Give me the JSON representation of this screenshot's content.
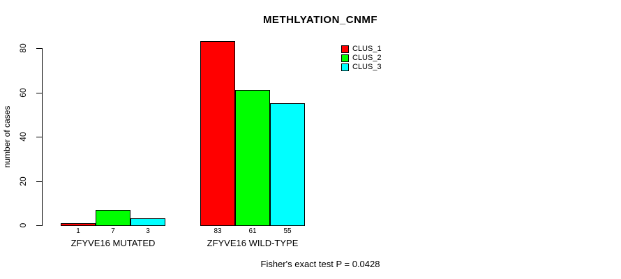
{
  "title": "METHLYATION_CNMF",
  "y_axis": {
    "label": "number of cases"
  },
  "footer": "Fisher's exact test P = 0.0428",
  "chart_data": {
    "type": "bar",
    "title": "METHLYATION_CNMF",
    "xlabel": "",
    "ylabel": "number of cases",
    "categories": [
      "ZFYVE16 MUTATED",
      "ZFYVE16 WILD-TYPE"
    ],
    "series": [
      {
        "name": "CLUS_1",
        "color": "#ff0000",
        "values": [
          1,
          83
        ]
      },
      {
        "name": "CLUS_2",
        "color": "#00ff00",
        "values": [
          7,
          61
        ]
      },
      {
        "name": "CLUS_3",
        "color": "#00ffff",
        "values": [
          3,
          55
        ]
      }
    ],
    "yticks": [
      0,
      20,
      40,
      60,
      80
    ],
    "ylim": [
      0,
      83
    ],
    "grid": false,
    "legend_position": "top-right",
    "bar_value_labels": [
      [
        "1",
        "7",
        "3"
      ],
      [
        "83",
        "61",
        "55"
      ]
    ],
    "annotation": "Fisher's exact test P = 0.0428"
  }
}
